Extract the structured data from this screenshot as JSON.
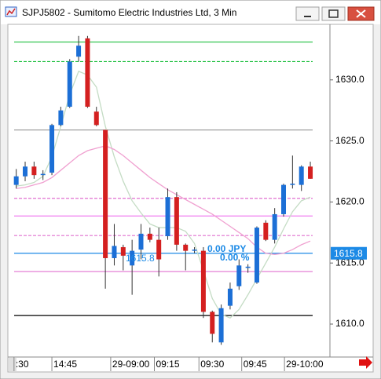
{
  "chart_data": {
    "type": "candlestick",
    "title": "SJPJ5802 - Sumitomo Electric Industries Ltd, 3 Min",
    "x": [
      0,
      1,
      2,
      3,
      4,
      5,
      6,
      7,
      8,
      9,
      10,
      11,
      12,
      13,
      14,
      15,
      16,
      17,
      18,
      19,
      20,
      21,
      22,
      23,
      24,
      25,
      26,
      27,
      28,
      29,
      30,
      31,
      32,
      33
    ],
    "open": [
      1621.4,
      1622.1,
      1622.9,
      1622.2,
      1622.4,
      1626.3,
      1627.8,
      1631.9,
      1633.4,
      1627.4,
      1625.9,
      1615.4,
      1616.3,
      1614.8,
      1616.1,
      1617.4,
      1616.9,
      1617.2,
      1620.4,
      1616.5,
      1616.0,
      1616.0,
      1611.0,
      1608.5,
      1611.5,
      1613.1,
      1614.6,
      1613.4,
      1618.3,
      1616.9,
      1619.0,
      1621.4,
      1621.4,
      1622.9
    ],
    "high": [
      1622.7,
      1623.3,
      1623.3,
      1622.6,
      1626.4,
      1627.8,
      1631.7,
      1633.6,
      1633.6,
      1627.8,
      1625.9,
      1618.2,
      1616.5,
      1616.9,
      1618.2,
      1617.9,
      1617.9,
      1621.1,
      1620.8,
      1616.6,
      1616.3,
      1616.3,
      1611.1,
      1611.6,
      1613.4,
      1615.3,
      1614.9,
      1618.0,
      1618.5,
      1619.5,
      1621.5,
      1623.8,
      1623.0,
      1623.3
    ],
    "low": [
      1621.1,
      1621.7,
      1621.9,
      1621.8,
      1622.2,
      1626.2,
      1627.7,
      1631.5,
      1627.7,
      1626.2,
      1612.9,
      1614.8,
      1614.4,
      1612.4,
      1615.3,
      1616.7,
      1613.9,
      1616.9,
      1616.0,
      1614.4,
      1615.8,
      1610.5,
      1608.5,
      1608.3,
      1611.2,
      1612.8,
      1614.2,
      1613.3,
      1616.8,
      1616.6,
      1618.8,
      1621.1,
      1620.9,
      1621.9
    ],
    "close": [
      1622.1,
      1622.9,
      1622.2,
      1622.3,
      1626.3,
      1627.5,
      1631.5,
      1632.8,
      1627.8,
      1626.3,
      1615.4,
      1616.4,
      1615.6,
      1616.0,
      1617.4,
      1616.9,
      1615.3,
      1620.4,
      1616.5,
      1616.0,
      1616.1,
      1611.0,
      1609.2,
      1611.3,
      1612.9,
      1614.8,
      1614.7,
      1617.9,
      1616.9,
      1619.0,
      1621.4,
      1621.5,
      1622.9,
      1621.9
    ],
    "up_color": "#1c6fd6",
    "down_color": "#d42020",
    "lines": [
      {
        "color": "#c4dcc4",
        "values": [
          1621.3,
          1621.4,
          1621.6,
          1622.1,
          1623.7,
          1626.2,
          1628.8,
          1630.7,
          1630.4,
          1629.4,
          1626.2,
          1623.7,
          1621.7,
          1620.1,
          1619.1,
          1618.2,
          1617.9,
          1617.9,
          1617.9,
          1617.6,
          1616.6,
          1614.4,
          1612.1,
          1610.8,
          1610.5,
          1611.2,
          1612.4,
          1613.7,
          1615.0,
          1616.3,
          1617.8,
          1619.2,
          1620.1,
          1620.4
        ]
      },
      {
        "color": "#f0a0d0",
        "values": [
          1621.1,
          1621.2,
          1621.4,
          1621.6,
          1622.0,
          1622.6,
          1623.2,
          1623.8,
          1624.2,
          1624.4,
          1624.6,
          1624.3,
          1623.8,
          1623.2,
          1622.6,
          1622.0,
          1621.5,
          1621.0,
          1620.6,
          1620.2,
          1619.8,
          1619.4,
          1619.0,
          1618.5,
          1618.0,
          1617.5,
          1617.0,
          1616.3,
          1615.8,
          1615.7,
          1615.8,
          1616.1,
          1616.5,
          1616.8
        ]
      }
    ],
    "levels": [
      {
        "value": 1633.1,
        "color": "#20c040",
        "dash": false
      },
      {
        "value": 1631.5,
        "color": "#20c040",
        "dash": true
      },
      {
        "value": 1625.9,
        "color": "#a0a0a0",
        "dash": false
      },
      {
        "value": 1620.3,
        "color": "#e070d0",
        "dash": true
      },
      {
        "value": 1618.85,
        "color": "#f080f0",
        "dash": false
      },
      {
        "value": 1617.25,
        "color": "#e070d0",
        "dash": true
      },
      {
        "value": 1615.8,
        "color": "#1c8ae6",
        "dash": false
      },
      {
        "value": 1614.3,
        "color": "#e070d0",
        "dash": false
      },
      {
        "value": 1610.7,
        "color": "#000000",
        "dash": false
      }
    ],
    "last_price": {
      "value": 1615.8,
      "label": "1615.8"
    },
    "annotations": [
      "0.00 JPY",
      "0.00 %",
      "1615.8"
    ],
    "xlim": [
      -0.5,
      35.2
    ],
    "ylim": [
      1607.3,
      1634.55
    ],
    "xticks": [
      {
        "value": -0.25,
        "label": ":30"
      },
      {
        "value": 4.0,
        "label": "14:45"
      },
      {
        "value": 10.6,
        "label": "29-09:00"
      },
      {
        "value": 15.5,
        "label": "09:15"
      },
      {
        "value": 20.5,
        "label": "09:30"
      },
      {
        "value": 25.3,
        "label": "09:45"
      },
      {
        "value": 30.1,
        "label": "29-10:00"
      }
    ],
    "yticks": [
      {
        "value": 1610,
        "label": "1610.0"
      },
      {
        "value": 1615,
        "label": "1615.0"
      },
      {
        "value": 1620,
        "label": "1620.0"
      },
      {
        "value": 1625,
        "label": "1625.0"
      },
      {
        "value": 1630,
        "label": "1630.0"
      }
    ]
  }
}
